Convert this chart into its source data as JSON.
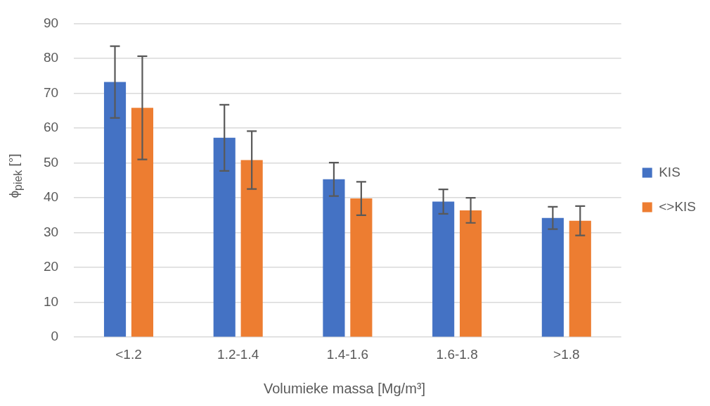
{
  "chart_data": {
    "type": "bar",
    "xlabel": "Volumieke massa [Mg/m³]",
    "ylabel": "ϕ$_{piek}$ [°]",
    "categories": [
      "<1.2",
      "1.2-1.4",
      "1.4-1.6",
      "1.6-1.8",
      ">1.8"
    ],
    "series": [
      {
        "name": "KIS",
        "color": "#4472c4",
        "values": [
          73.2,
          57.2,
          45.3,
          38.9,
          34.2
        ],
        "errors": [
          10.3,
          9.5,
          4.8,
          3.5,
          3.2
        ]
      },
      {
        "name": "<>KIS",
        "color": "#ed7d31",
        "values": [
          65.8,
          50.8,
          39.8,
          36.4,
          33.4
        ],
        "errors": [
          14.8,
          8.3,
          4.8,
          3.6,
          4.2
        ]
      }
    ],
    "ylim": [
      0,
      90
    ],
    "yticks": [
      0,
      10,
      20,
      30,
      40,
      50,
      60,
      70,
      80,
      90
    ],
    "grid": "y",
    "legend": "right"
  }
}
